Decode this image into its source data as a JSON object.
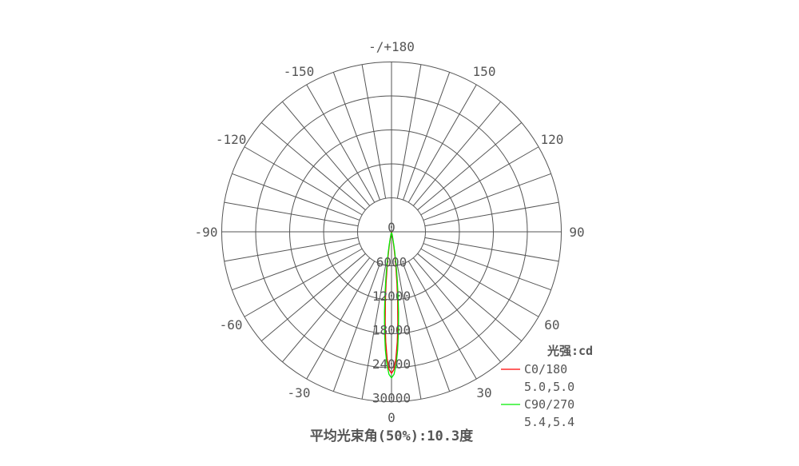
{
  "chart_data": {
    "type": "polar-line",
    "radial_unit_label": "光强:cd",
    "radial_ticks": [
      "0",
      "6000",
      "12000",
      "18000",
      "24000",
      "30000"
    ],
    "radial_range": [
      0,
      30000
    ],
    "angle_ticks": [
      {
        "angle": 180,
        "label": "-/+180"
      },
      {
        "angle": 150,
        "label": "150"
      },
      {
        "angle": 120,
        "label": "120"
      },
      {
        "angle": 90,
        "label": "90"
      },
      {
        "angle": 60,
        "label": "60"
      },
      {
        "angle": 30,
        "label": "30"
      },
      {
        "angle": 0,
        "label": "0"
      },
      {
        "angle": -30,
        "label": "-30"
      },
      {
        "angle": -60,
        "label": "-60"
      },
      {
        "angle": -90,
        "label": "-90"
      },
      {
        "angle": -120,
        "label": "-120"
      },
      {
        "angle": -150,
        "label": "-150"
      }
    ],
    "angular_grid_step_deg": 10,
    "grid": true,
    "legend_placement": "bottom-right",
    "footer": "平均光束角(50%):10.3度",
    "angles_deg": [
      0,
      1,
      2,
      3,
      4,
      5,
      6,
      7,
      8,
      9,
      10,
      12,
      15
    ],
    "symmetric": true,
    "series": [
      {
        "name": "C0/180",
        "beam_angles": "5.0,5.0",
        "color": "#ff0000",
        "values": [
          25000,
          24320,
          22370,
          19480,
          16040,
          12500,
          9210,
          6430,
          4240,
          2650,
          1560,
          460,
          50
        ]
      },
      {
        "name": "C90/270",
        "beam_angles": "5.4,5.4",
        "color": "#00ee00",
        "values": [
          25800,
          25190,
          23460,
          20830,
          17640,
          14250,
          10960,
          8050,
          5640,
          3760,
          2390,
          840,
          120
        ]
      }
    ]
  }
}
